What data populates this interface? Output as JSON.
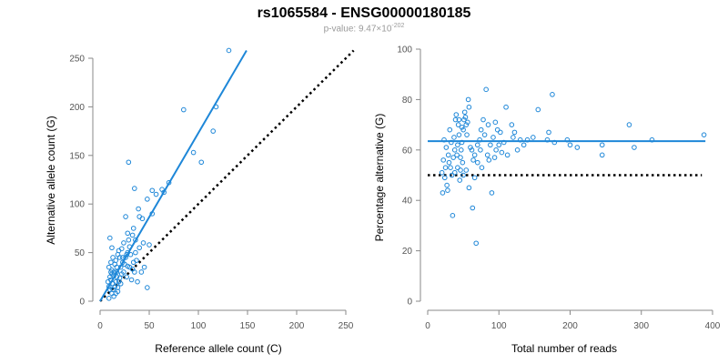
{
  "title": "rs1065584 - ENSG00000180185",
  "subtitle_prefix": "p-value: 9.47×10",
  "subtitle_exponent": "-202",
  "colors": {
    "points": "#1e87d8",
    "fit": "#1e87d8",
    "reference": "#000000",
    "axis": "#888888"
  },
  "chart_data": [
    {
      "type": "scatter",
      "xlabel": "Reference allele count (C)",
      "ylabel": "Alternative allele count (G)",
      "xlim": [
        0,
        250
      ],
      "ylim": [
        0,
        250
      ],
      "xticks": [
        0,
        50,
        100,
        150,
        200,
        250
      ],
      "yticks": [
        0,
        50,
        100,
        150,
        200,
        250
      ],
      "grid": false,
      "fit_line": [
        [
          0,
          0
        ],
        [
          149,
          258
        ]
      ],
      "reference_line": [
        [
          0,
          0
        ],
        [
          258,
          258
        ]
      ],
      "points": [
        [
          131,
          258
        ],
        [
          85,
          197
        ],
        [
          118,
          200
        ],
        [
          115,
          175
        ],
        [
          95,
          153
        ],
        [
          103,
          143
        ],
        [
          29,
          143
        ],
        [
          70,
          122
        ],
        [
          35,
          116
        ],
        [
          63,
          115
        ],
        [
          53,
          114
        ],
        [
          57,
          110
        ],
        [
          65,
          112
        ],
        [
          48,
          105
        ],
        [
          53,
          90
        ],
        [
          39,
          95
        ],
        [
          40,
          87
        ],
        [
          43,
          85
        ],
        [
          26,
          87
        ],
        [
          34,
          75
        ],
        [
          28,
          70
        ],
        [
          36,
          63
        ],
        [
          29,
          63
        ],
        [
          30,
          56
        ],
        [
          22,
          54
        ],
        [
          18,
          48
        ],
        [
          10,
          65
        ],
        [
          12,
          55
        ],
        [
          20,
          45
        ],
        [
          16,
          42
        ],
        [
          23,
          40
        ],
        [
          25,
          38
        ],
        [
          28,
          36
        ],
        [
          30,
          35
        ],
        [
          33,
          33
        ],
        [
          35,
          30
        ],
        [
          14,
          30
        ],
        [
          12,
          28
        ],
        [
          17,
          25
        ],
        [
          19,
          20
        ],
        [
          21,
          18
        ],
        [
          13,
          18
        ],
        [
          15,
          15
        ],
        [
          11,
          22
        ],
        [
          10,
          12
        ],
        [
          12,
          8
        ],
        [
          14,
          5
        ],
        [
          9,
          3
        ],
        [
          8,
          20
        ],
        [
          9,
          35
        ],
        [
          11,
          40
        ],
        [
          13,
          45
        ],
        [
          17,
          35
        ],
        [
          22,
          28
        ],
        [
          27,
          25
        ],
        [
          32,
          22
        ],
        [
          38,
          20
        ],
        [
          42,
          30
        ],
        [
          45,
          35
        ],
        [
          48,
          14
        ],
        [
          18,
          10
        ],
        [
          16,
          8
        ],
        [
          24,
          30
        ],
        [
          26,
          45
        ],
        [
          31,
          48
        ],
        [
          36,
          50
        ],
        [
          15,
          38
        ],
        [
          19,
          52
        ],
        [
          24,
          60
        ],
        [
          21,
          35
        ],
        [
          12,
          32
        ],
        [
          14,
          26
        ],
        [
          16,
          20
        ],
        [
          18,
          14
        ],
        [
          20,
          24
        ],
        [
          10,
          25
        ],
        [
          11,
          30
        ],
        [
          13,
          12
        ],
        [
          9,
          15
        ],
        [
          28,
          50
        ],
        [
          34,
          40
        ],
        [
          37,
          42
        ],
        [
          40,
          55
        ],
        [
          44,
          60
        ],
        [
          50,
          58
        ],
        [
          33,
          68
        ],
        [
          27,
          48
        ],
        [
          23,
          45
        ],
        [
          17,
          30
        ]
      ]
    },
    {
      "type": "scatter",
      "xlabel": "Total number of reads",
      "ylabel": "Percentage alternative (G)",
      "xlim": [
        0,
        400
      ],
      "ylim": [
        0,
        100
      ],
      "xticks": [
        0,
        100,
        200,
        300,
        400
      ],
      "yticks": [
        0,
        20,
        40,
        60,
        80,
        100
      ],
      "grid": false,
      "fit_line": [
        [
          0,
          63.5
        ],
        [
          390,
          63.5
        ]
      ],
      "reference_line": [
        [
          0,
          50
        ],
        [
          385,
          50
        ]
      ],
      "points": [
        [
          388,
          66
        ],
        [
          315,
          64
        ],
        [
          290,
          61
        ],
        [
          283,
          70
        ],
        [
          245,
          58
        ],
        [
          245,
          62
        ],
        [
          210,
          61
        ],
        [
          200,
          62
        ],
        [
          196,
          64
        ],
        [
          178,
          63
        ],
        [
          175,
          82
        ],
        [
          170,
          67
        ],
        [
          168,
          64
        ],
        [
          155,
          76
        ],
        [
          148,
          65
        ],
        [
          140,
          64
        ],
        [
          135,
          62
        ],
        [
          130,
          64
        ],
        [
          126,
          60
        ],
        [
          122,
          67
        ],
        [
          120,
          65
        ],
        [
          118,
          70
        ],
        [
          110,
          77
        ],
        [
          107,
          63
        ],
        [
          102,
          67
        ],
        [
          98,
          68
        ],
        [
          95,
          71
        ],
        [
          92,
          65
        ],
        [
          88,
          62
        ],
        [
          85,
          70
        ],
        [
          82,
          84
        ],
        [
          80,
          66
        ],
        [
          78,
          72
        ],
        [
          75,
          68
        ],
        [
          73,
          64
        ],
        [
          70,
          62
        ],
        [
          68,
          23
        ],
        [
          66,
          58
        ],
        [
          64,
          56
        ],
        [
          63,
          37
        ],
        [
          60,
          61
        ],
        [
          58,
          77
        ],
        [
          57,
          80
        ],
        [
          55,
          66
        ],
        [
          54,
          70
        ],
        [
          53,
          73
        ],
        [
          52,
          75
        ],
        [
          51,
          72
        ],
        [
          50,
          68
        ],
        [
          49,
          55
        ],
        [
          48,
          63
        ],
        [
          47,
          60
        ],
        [
          46,
          52
        ],
        [
          45,
          48
        ],
        [
          44,
          66
        ],
        [
          43,
          70
        ],
        [
          42,
          62
        ],
        [
          41,
          58
        ],
        [
          40,
          74
        ],
        [
          39,
          72
        ],
        [
          38,
          60
        ],
        [
          37,
          65
        ],
        [
          36,
          57
        ],
        [
          35,
          34
        ],
        [
          34,
          50
        ],
        [
          33,
          63
        ],
        [
          32,
          53
        ],
        [
          31,
          68
        ],
        [
          30,
          55
        ],
        [
          29,
          58
        ],
        [
          28,
          44
        ],
        [
          27,
          46
        ],
        [
          26,
          61
        ],
        [
          25,
          53
        ],
        [
          24,
          49
        ],
        [
          23,
          64
        ],
        [
          22,
          56
        ],
        [
          21,
          43
        ],
        [
          20,
          51
        ],
        [
          58,
          45
        ],
        [
          62,
          60
        ],
        [
          70,
          55
        ],
        [
          74,
          60
        ],
        [
          86,
          56
        ],
        [
          90,
          43
        ],
        [
          94,
          57
        ],
        [
          96,
          60
        ],
        [
          100,
          62
        ],
        [
          104,
          59
        ],
        [
          112,
          58
        ],
        [
          38,
          51
        ],
        [
          42,
          53
        ],
        [
          46,
          57
        ],
        [
          50,
          50
        ],
        [
          54,
          52
        ],
        [
          66,
          49
        ],
        [
          76,
          53
        ],
        [
          84,
          58
        ],
        [
          44,
          72
        ],
        [
          48,
          69
        ],
        [
          56,
          71
        ]
      ]
    }
  ]
}
